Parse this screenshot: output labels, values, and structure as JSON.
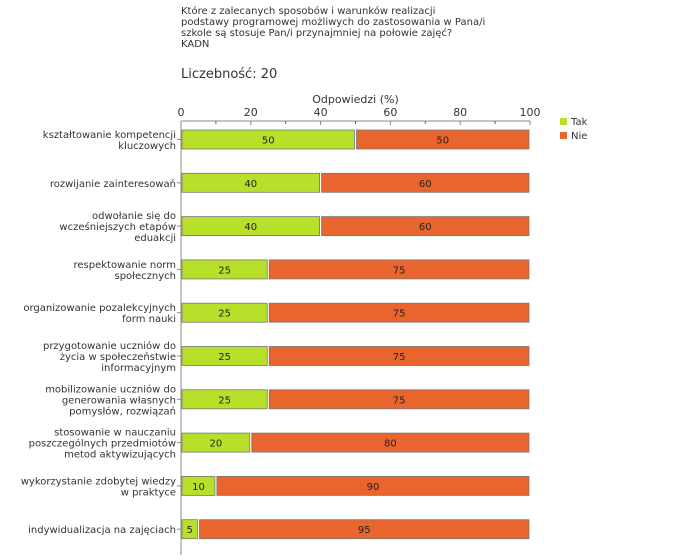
{
  "title_lines": [
    "Które z zalecanych sposobów i warunków realizacji",
    "podstawy programowej możliwych do zastosowania w Pana/i",
    "szkole są stosuje Pan/i przynajmniej na połowie zajęć?",
    "KADN"
  ],
  "count_label": "Liczebność:",
  "count_value": "20",
  "colors": {
    "tak": "#b8e02a",
    "nie": "#e8662d",
    "axis": "#888888",
    "tick_red": "#cc3333"
  },
  "chart_data": {
    "type": "bar",
    "orientation": "horizontal",
    "stacked": true,
    "xlabel": "Odpowiedzi (%)",
    "xlim": [
      0,
      100
    ],
    "xticks": [
      0,
      20,
      40,
      60,
      80,
      100
    ],
    "legend": [
      "Tak",
      "Nie"
    ],
    "legend_position": "top-right",
    "categories": [
      [
        "kształtowanie kompetencji",
        "kluczowych"
      ],
      [
        "rozwijanie zainteresowań"
      ],
      [
        "odwołanie się do",
        "wcześniejszych etapów",
        "eduakcji"
      ],
      [
        "respektowanie norm",
        "społecznych"
      ],
      [
        "organizowanie pozalekcyjnych",
        "form nauki"
      ],
      [
        "przygotowanie uczniów do",
        "życia w społeczeństwie",
        "informacyjnym"
      ],
      [
        "mobilizowanie uczniów do",
        "generowania własnych",
        "pomysłów, rozwiązań"
      ],
      [
        "stosowanie w nauczaniu",
        "poszczególnych przedmiotów",
        "metod aktywizujących"
      ],
      [
        "wykorzystanie zdobytej wiedzy",
        "w praktyce"
      ],
      [
        "indywidualizacja na zajęciach"
      ]
    ],
    "series": [
      {
        "name": "Tak",
        "values": [
          50,
          40,
          40,
          25,
          25,
          25,
          25,
          20,
          10,
          5
        ]
      },
      {
        "name": "Nie",
        "values": [
          50,
          60,
          60,
          75,
          75,
          75,
          75,
          80,
          90,
          95
        ]
      }
    ]
  }
}
